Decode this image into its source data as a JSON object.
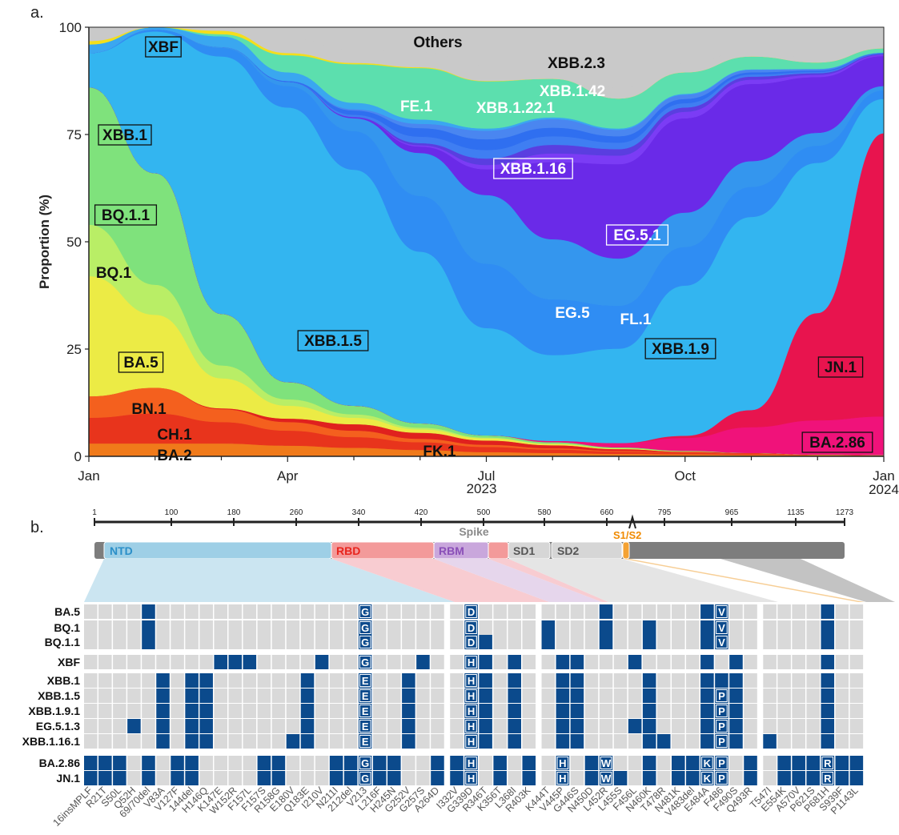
{
  "panel_a": {
    "panel_label": "a.",
    "chart_data": {
      "type": "area",
      "title": "",
      "ylabel": "Proportion (%)",
      "xlabel": "2023",
      "ylim": [
        0,
        100
      ],
      "yticks": [
        "0",
        "25",
        "50",
        "75",
        "100"
      ],
      "xticks": [
        "Jan",
        "Apr",
        "Jul",
        "Oct",
        "Jan"
      ],
      "year_labels": {
        "start": "2023",
        "end": "2024"
      },
      "x_months": [
        0,
        1,
        2,
        3,
        4,
        5,
        6,
        7,
        8,
        9,
        10,
        11,
        12
      ],
      "series": [
        {
          "name": "BA.2",
          "color": "#f07a1a",
          "values": [
            3,
            3,
            3,
            2.5,
            2,
            1.5,
            1,
            0.8,
            0.6,
            0.5,
            0.4,
            0.3,
            0.2
          ]
        },
        {
          "name": "CH.1",
          "color": "#e8341c",
          "values": [
            6,
            7,
            5,
            3.5,
            2.5,
            1.8,
            1.2,
            0.8,
            0.5,
            0.3,
            0.2,
            0.1,
            0.1
          ]
        },
        {
          "name": "BN.1",
          "color": "#f4601e",
          "values": [
            5,
            6,
            3,
            2,
            1.5,
            0.8,
            0.5,
            0.3,
            0.2,
            0.1,
            0.1,
            0,
            0
          ]
        },
        {
          "name": "FK.1",
          "color": "#e0211e",
          "values": [
            0,
            0,
            0.2,
            0.8,
            1.5,
            1.4,
            1,
            0.7,
            0.4,
            0.2,
            0.1,
            0,
            0
          ]
        },
        {
          "name": "BA.5",
          "color": "#eceb45",
          "values": [
            28,
            17,
            7,
            3,
            1.5,
            0.8,
            0.5,
            0.3,
            0.2,
            0.1,
            0,
            0,
            0
          ]
        },
        {
          "name": "BQ.1",
          "color": "#b9ee66",
          "values": [
            12,
            7,
            3,
            1.5,
            0.8,
            0.4,
            0.2,
            0.1,
            0,
            0,
            0,
            0,
            0
          ]
        },
        {
          "name": "BQ.1.1",
          "color": "#7fe27c",
          "values": [
            32,
            26,
            12,
            4,
            2,
            1,
            0.5,
            0.3,
            0.2,
            0.1,
            0,
            0,
            0
          ]
        },
        {
          "name": "BA.2.86",
          "color": "#f0127a",
          "values": [
            0,
            0,
            0,
            0,
            0,
            0,
            0,
            0.3,
            1,
            3,
            6,
            8,
            9
          ]
        },
        {
          "name": "JN.1",
          "color": "#e8144e",
          "values": [
            0,
            0,
            0,
            0,
            0,
            0,
            0,
            0,
            0,
            0.5,
            4,
            25,
            66
          ]
        },
        {
          "name": "XBB.1.5",
          "color": "#33b5f0",
          "values": [
            8,
            33,
            60,
            64,
            55,
            40,
            25,
            20,
            22,
            35,
            45,
            35,
            8
          ]
        },
        {
          "name": "XBB.1.9",
          "color": "#2f8df3",
          "values": [
            0,
            0.5,
            2,
            5,
            9,
            13,
            15,
            13,
            10,
            9,
            7,
            4,
            2
          ]
        },
        {
          "name": "XBB.1.16",
          "color": "#3496ee",
          "values": [
            0,
            0,
            0.2,
            1,
            3,
            10,
            16,
            14,
            11,
            8,
            6,
            3,
            1
          ]
        },
        {
          "name": "EG.5.1",
          "color": "#6a2ae8",
          "values": [
            0,
            0,
            0,
            0,
            0.2,
            1.5,
            6,
            18,
            22,
            22,
            18,
            13,
            7
          ]
        },
        {
          "name": "EG.5",
          "color": "#7b3cf5",
          "values": [
            0,
            0,
            0,
            0,
            0,
            0.3,
            1,
            2,
            2,
            1.5,
            1,
            0.5,
            0.3
          ]
        },
        {
          "name": "FL.1",
          "color": "#5a3ee0",
          "values": [
            0,
            0,
            0,
            0,
            0.1,
            0.5,
            1.5,
            2,
            1.5,
            1,
            0.7,
            0.4,
            0.2
          ]
        },
        {
          "name": "XBB.1.22.1",
          "color": "#3f7ef2",
          "values": [
            0,
            0,
            0,
            0,
            0.5,
            1.5,
            2,
            2,
            1.5,
            1,
            0.5,
            0.3,
            0.1
          ]
        },
        {
          "name": "FE.1",
          "color": "#2f6ff0",
          "values": [
            0,
            0,
            0,
            0.2,
            1,
            2,
            2.5,
            2,
            1.5,
            1,
            0.5,
            0.3,
            0.1
          ]
        },
        {
          "name": "XBB.1.42",
          "color": "#4a86f0",
          "values": [
            0,
            0,
            0,
            0,
            0.3,
            1,
            2,
            2,
            1.5,
            1,
            0.6,
            0.3,
            0.1
          ]
        },
        {
          "name": "XBB.1",
          "color": "#3aa7f0",
          "values": [
            2,
            3,
            2.5,
            2,
            1.5,
            1,
            0.5,
            0.4,
            0.3,
            0.2,
            0.1,
            0.1,
            0
          ]
        },
        {
          "name": "XBB.2.3",
          "color": "#5cdfae",
          "values": [
            0,
            0,
            0.5,
            4,
            9,
            12,
            11,
            9,
            7,
            5,
            3,
            1.5,
            1
          ]
        },
        {
          "name": "XBF",
          "color": "#f4de1c",
          "values": [
            0.8,
            1,
            0.8,
            0.5,
            0.3,
            0.2,
            0.1,
            0,
            0,
            0,
            0,
            0,
            0
          ]
        },
        {
          "name": "Others",
          "color": "#c9c9c9",
          "values": [
            4.2,
            4,
            4.3,
            3.5,
            3,
            3.5,
            3.5,
            3.2,
            2.5,
            2,
            1.5,
            1,
            0.7
          ]
        }
      ],
      "annotations": [
        {
          "text": "Others",
          "boxed": false,
          "color": "#111111"
        },
        {
          "text": "XBF",
          "boxed": true,
          "color": "#111111"
        },
        {
          "text": "XBB.2.3",
          "boxed": false,
          "color": "#111111"
        },
        {
          "text": "XBB.1.42",
          "boxed": false,
          "color": "#ffffff"
        },
        {
          "text": "FE.1",
          "boxed": false,
          "color": "#ffffff"
        },
        {
          "text": "XBB.1.22.1",
          "boxed": false,
          "color": "#ffffff"
        },
        {
          "text": "XBB.1",
          "boxed": true,
          "color": "#111111"
        },
        {
          "text": "XBB.1.16",
          "boxed": true,
          "color": "#ffffff"
        },
        {
          "text": "BQ.1.1",
          "boxed": true,
          "color": "#111111"
        },
        {
          "text": "EG.5.1",
          "boxed": true,
          "color": "#ffffff"
        },
        {
          "text": "BQ.1",
          "boxed": false,
          "color": "#111111"
        },
        {
          "text": "EG.5",
          "boxed": false,
          "color": "#ffffff"
        },
        {
          "text": "FL.1",
          "boxed": false,
          "color": "#ffffff"
        },
        {
          "text": "XBB.1.5",
          "boxed": true,
          "color": "#111111"
        },
        {
          "text": "XBB.1.9",
          "boxed": true,
          "color": "#111111"
        },
        {
          "text": "BA.5",
          "boxed": true,
          "color": "#111111"
        },
        {
          "text": "JN.1",
          "boxed": true,
          "color": "#111111"
        },
        {
          "text": "BN.1",
          "boxed": false,
          "color": "#111111"
        },
        {
          "text": "CH.1",
          "boxed": false,
          "color": "#111111"
        },
        {
          "text": "BA.2",
          "boxed": false,
          "color": "#111111"
        },
        {
          "text": "FK.1",
          "boxed": false,
          "color": "#111111"
        },
        {
          "text": "BA.2.86",
          "boxed": true,
          "color": "#111111"
        }
      ]
    }
  },
  "panel_b": {
    "panel_label": "b.",
    "spike_title": "Spike",
    "ruler_ticks": [
      "1",
      "100",
      "180",
      "260",
      "340",
      "420",
      "500",
      "580",
      "660",
      "795",
      "965",
      "1135",
      "1273"
    ],
    "domains": [
      {
        "name": "NTD",
        "color": "#9ecfe6",
        "text_color": "#2b8fc8"
      },
      {
        "name": "RBD",
        "color": "#f39a9a",
        "text_color": "#e8251e"
      },
      {
        "name": "RBM",
        "color": "#c9a7dc",
        "text_color": "#8a4fb8"
      },
      {
        "name": "SD1",
        "color": "#d6d6d6",
        "text_color": "#555555"
      },
      {
        "name": "SD2",
        "color": "#d6d6d6",
        "text_color": "#555555"
      },
      {
        "name": "S1/S2",
        "color": "#f4a233",
        "text_color": "#f08a00"
      }
    ],
    "chart_data": {
      "type": "table",
      "mutations": [
        "16insMPLF",
        "R21T",
        "S50L",
        "Q52H",
        "69/70del",
        "V83A",
        "V127F",
        "144del",
        "H146Q",
        "K147E",
        "W152R",
        "F157L",
        "F157S",
        "R158G",
        "E180V",
        "Q183E",
        "I210V",
        "N211I",
        "212del",
        "V213",
        "L216F",
        "H245N",
        "G252V",
        "G257S",
        "A264D",
        "I332V",
        "G339D",
        "R346T",
        "K356T",
        "L368I",
        "R403K",
        "K444T",
        "V445P",
        "G446S",
        "N450D",
        "L452R",
        "L455S",
        "F456L",
        "N460K",
        "T478R",
        "N481K",
        "V483del",
        "E484A",
        "F486",
        "F490S",
        "Q493R",
        "T547I",
        "E554K",
        "A570V",
        "P621S",
        "P681H",
        "S939F",
        "P1143L"
      ],
      "variants": [
        {
          "name": "BA.5",
          "cells": {
            "69/70del": "",
            "V213": "G",
            "G339D": "D",
            "L452R": "",
            "E484A": "",
            "F486": "V",
            "P681H": ""
          }
        },
        {
          "name": "BQ.1",
          "cells": {
            "69/70del": "",
            "V213": "G",
            "G339D": "D",
            "K444T": "",
            "L452R": "",
            "N460K": "",
            "E484A": "",
            "F486": "V",
            "P681H": ""
          }
        },
        {
          "name": "BQ.1.1",
          "cells": {
            "69/70del": "",
            "V213": "G",
            "G339D": "D",
            "R346T": "",
            "K444T": "",
            "L452R": "",
            "N460K": "",
            "E484A": "",
            "F486": "V",
            "P681H": ""
          }
        },
        {
          "name": "XBF",
          "cells": {
            "K147E": "",
            "W152R": "",
            "F157L": "",
            "I210V": "",
            "V213": "G",
            "G257S": "",
            "G339D": "H",
            "R346T": "",
            "L368I": "",
            "V445P": "",
            "G446S": "",
            "F456L": "",
            "E484A": "",
            "F490S": "",
            "P681H": ""
          }
        },
        {
          "name": "XBB.1",
          "cells": {
            "V83A": "",
            "144del": "",
            "H146Q": "",
            "Q183E": "",
            "V213": "E",
            "G252V": "",
            "G339D": "H",
            "R346T": "",
            "L368I": "",
            "V445P": "",
            "G446S": "",
            "N460K": "",
            "E484A": "",
            "F486": "",
            "F490S": "",
            "P681H": ""
          }
        },
        {
          "name": "XBB.1.5",
          "cells": {
            "V83A": "",
            "144del": "",
            "H146Q": "",
            "Q183E": "",
            "V213": "E",
            "G252V": "",
            "G339D": "H",
            "R346T": "",
            "L368I": "",
            "V445P": "",
            "G446S": "",
            "N460K": "",
            "E484A": "",
            "F486": "P",
            "F490S": "",
            "P681H": ""
          }
        },
        {
          "name": "XBB.1.9.1",
          "cells": {
            "V83A": "",
            "144del": "",
            "H146Q": "",
            "Q183E": "",
            "V213": "E",
            "G252V": "",
            "G339D": "H",
            "R346T": "",
            "L368I": "",
            "V445P": "",
            "G446S": "",
            "N460K": "",
            "E484A": "",
            "F486": "P",
            "F490S": "",
            "P681H": ""
          }
        },
        {
          "name": "EG.5.1.3",
          "cells": {
            "Q52H": "",
            "V83A": "",
            "144del": "",
            "H146Q": "",
            "Q183E": "",
            "V213": "E",
            "G252V": "",
            "G339D": "H",
            "R346T": "",
            "L368I": "",
            "V445P": "",
            "G446S": "",
            "F456L": "",
            "N460K": "",
            "E484A": "",
            "F486": "P",
            "F490S": "",
            "P681H": ""
          }
        },
        {
          "name": "XBB.1.16.1",
          "cells": {
            "V83A": "",
            "144del": "",
            "H146Q": "",
            "E180V": "",
            "Q183E": "",
            "V213": "E",
            "G252V": "",
            "G339D": "H",
            "R346T": "",
            "L368I": "",
            "V445P": "",
            "G446S": "",
            "N460K": "",
            "T478R": "",
            "E484A": "",
            "F486": "P",
            "F490S": "",
            "T547I": "",
            "P681H": ""
          }
        },
        {
          "name": "BA.2.86",
          "cells": {
            "16insMPLF": "",
            "R21T": "",
            "S50L": "",
            "69/70del": "",
            "V127F": "",
            "144del": "",
            "F157S": "",
            "R158G": "",
            "N211I": "",
            "212del": "",
            "V213": "G",
            "L216F": "",
            "H245N": "",
            "A264D": "",
            "I332V": "",
            "G339D": "H",
            "K356T": "",
            "R403K": "",
            "V445P": "H",
            "N450D": "",
            "L452R": "W",
            "N460K": "",
            "N481K": "",
            "V483del": "",
            "E484A": "K",
            "F486": "P",
            "Q493R": "",
            "E554K": "",
            "A570V": "",
            "P621S": "",
            "P681H": "R",
            "S939F": "",
            "P1143L": ""
          }
        },
        {
          "name": "JN.1",
          "cells": {
            "16insMPLF": "",
            "R21T": "",
            "S50L": "",
            "69/70del": "",
            "V127F": "",
            "144del": "",
            "F157S": "",
            "R158G": "",
            "N211I": "",
            "212del": "",
            "V213": "G",
            "L216F": "",
            "H245N": "",
            "A264D": "",
            "I332V": "",
            "G339D": "H",
            "K356T": "",
            "R403K": "",
            "V445P": "H",
            "N450D": "",
            "L452R": "W",
            "L455S": "",
            "N460K": "",
            "N481K": "",
            "V483del": "",
            "E484A": "K",
            "F486": "P",
            "Q493R": "",
            "E554K": "",
            "A570V": "",
            "P621S": "",
            "P681H": "R",
            "S939F": "",
            "P1143L": ""
          }
        }
      ],
      "colors": {
        "filled": "#0b4a8c",
        "empty": "#d9d9d9"
      }
    }
  }
}
